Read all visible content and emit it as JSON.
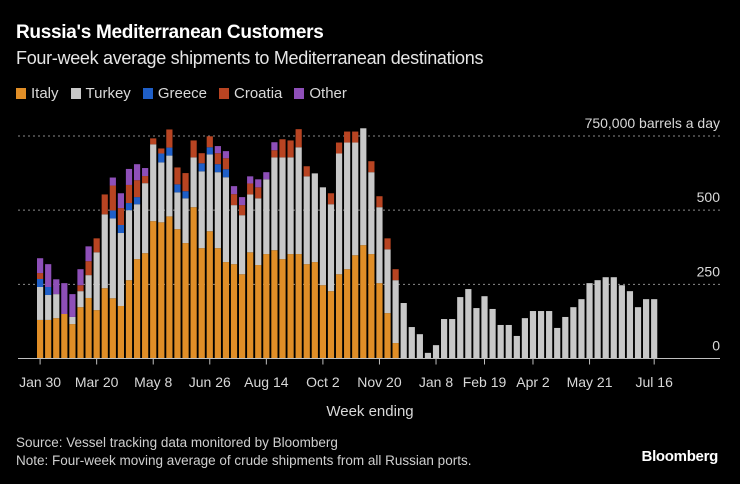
{
  "header": {
    "title": "Russia's Mediterranean Customers",
    "subtitle": "Four-week average shipments to Mediterranean destinations"
  },
  "footer": {
    "source": "Source: Vessel tracking data monitored by Bloomberg",
    "note": "Note: Four-week moving average of crude shipments from all Russian ports.",
    "brand": "Bloomberg"
  },
  "chart_data": {
    "type": "bar",
    "stacked": true,
    "title": "Russia's Mediterranean Customers",
    "subtitle": "Four-week average shipments to Mediterranean destinations",
    "xlabel": "Week ending",
    "ylabel": "barrels a day",
    "ylim": [
      0,
      750
    ],
    "yticks": [
      {
        "value": 0,
        "label": "0"
      },
      {
        "value": 250,
        "label": "250"
      },
      {
        "value": 500,
        "label": "500"
      },
      {
        "value": 750,
        "label": "750,000 barrels a day"
      }
    ],
    "xticks": [
      {
        "index": 0,
        "label": "Jan 30"
      },
      {
        "index": 7,
        "label": "Mar 20"
      },
      {
        "index": 14,
        "label": "May 8"
      },
      {
        "index": 21,
        "label": "Jun 26"
      },
      {
        "index": 28,
        "label": "Aug 14"
      },
      {
        "index": 35,
        "label": "Oct 2"
      },
      {
        "index": 42,
        "label": "Nov 20"
      },
      {
        "index": 49,
        "label": "Jan 8"
      },
      {
        "index": 55,
        "label": "Feb 19"
      },
      {
        "index": 61,
        "label": "Apr 2"
      },
      {
        "index": 68,
        "label": "May 21"
      },
      {
        "index": 76,
        "label": "Jul 16"
      }
    ],
    "grid": true,
    "legend_position": "top-left",
    "series": [
      {
        "name": "Italy",
        "color": "#e08e27",
        "values": [
          130,
          130,
          136,
          150,
          116,
          173,
          204,
          163,
          237,
          203,
          177,
          264,
          335,
          355,
          463,
          459,
          479,
          436,
          389,
          510,
          372,
          429,
          372,
          325,
          318,
          284,
          358,
          315,
          352,
          365,
          335,
          352,
          352,
          318,
          325,
          247,
          227,
          284,
          301,
          348,
          382,
          352,
          254,
          153,
          52,
          0,
          0,
          0,
          0,
          0,
          0,
          0,
          0,
          0,
          0,
          0,
          0,
          0,
          0,
          0,
          0,
          0,
          0,
          0,
          0,
          0,
          0,
          0,
          0,
          0,
          0,
          0,
          0,
          0,
          0,
          0,
          0
        ]
      },
      {
        "name": "Turkey",
        "color": "#c8c8c8",
        "values": [
          111,
          84,
          81,
          0,
          24,
          54,
          77,
          195,
          249,
          269,
          246,
          236,
          185,
          236,
          259,
          202,
          205,
          124,
          151,
          168,
          259,
          259,
          256,
          286,
          199,
          199,
          195,
          225,
          252,
          313,
          343,
          326,
          360,
          296,
          299,
          330,
          293,
          407,
          427,
          380,
          394,
          276,
          256,
          215,
          212,
          187,
          106,
          82,
          19,
          45,
          133,
          133,
          207,
          234,
          170,
          210,
          167,
          113,
          113,
          76,
          136,
          160,
          160,
          160,
          103,
          140,
          173,
          200,
          254,
          264,
          274,
          274,
          247,
          227,
          173,
          200,
          200
        ]
      },
      {
        "name": "Greece",
        "color": "#1f5fc8",
        "values": [
          27,
          27,
          0,
          0,
          0,
          0,
          0,
          0,
          0,
          27,
          27,
          24,
          24,
          0,
          0,
          30,
          27,
          27,
          24,
          0,
          27,
          24,
          27,
          27,
          0,
          0,
          0,
          0,
          0,
          0,
          0,
          0,
          0,
          0,
          0,
          0,
          0,
          0,
          0,
          0,
          0,
          0,
          0,
          0,
          0,
          0,
          0,
          0,
          0,
          0,
          0,
          0,
          0,
          0,
          0,
          0,
          0,
          0,
          0,
          0,
          0,
          0,
          0,
          0,
          0,
          0,
          0,
          0,
          0,
          0,
          0,
          0,
          0,
          0,
          0,
          0,
          0
        ]
      },
      {
        "name": "Croatia",
        "color": "#b84422",
        "values": [
          20,
          0,
          0,
          0,
          0,
          20,
          47,
          47,
          67,
          84,
          57,
          61,
          57,
          24,
          20,
          17,
          61,
          57,
          61,
          57,
          34,
          37,
          37,
          37,
          37,
          34,
          37,
          37,
          0,
          24,
          61,
          57,
          61,
          34,
          0,
          0,
          37,
          37,
          37,
          37,
          0,
          37,
          37,
          37,
          37,
          0,
          0,
          0,
          0,
          0,
          0,
          0,
          0,
          0,
          0,
          0,
          0,
          0,
          0,
          0,
          0,
          0,
          0,
          0,
          0,
          0,
          0,
          0,
          0,
          0,
          0,
          0,
          0,
          0,
          0,
          0,
          0
        ]
      },
      {
        "name": "Other",
        "color": "#8e4fb8",
        "values": [
          50,
          77,
          50,
          104,
          77,
          54,
          50,
          0,
          0,
          27,
          50,
          54,
          54,
          27,
          0,
          0,
          0,
          0,
          0,
          0,
          0,
          0,
          24,
          24,
          27,
          27,
          24,
          27,
          24,
          27,
          0,
          0,
          0,
          0,
          0,
          0,
          0,
          0,
          0,
          0,
          0,
          0,
          0,
          0,
          0,
          0,
          0,
          0,
          0,
          0,
          0,
          0,
          0,
          0,
          0,
          0,
          0,
          0,
          0,
          0,
          0,
          0,
          0,
          0,
          0,
          0,
          0,
          0,
          0,
          0,
          0,
          0,
          0,
          0,
          0,
          0,
          0
        ]
      }
    ]
  }
}
